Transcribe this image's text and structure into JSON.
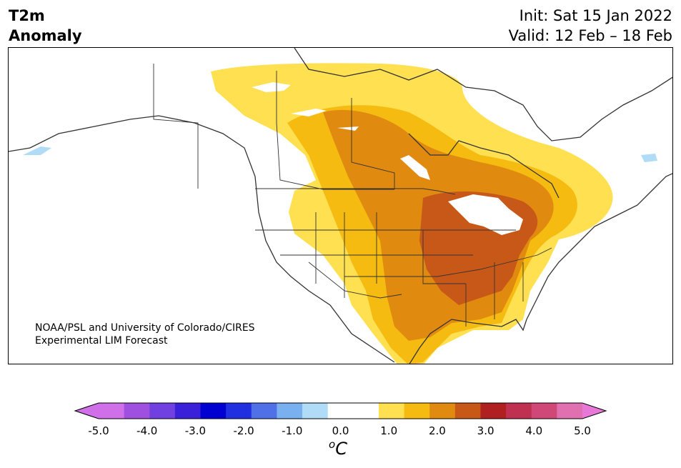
{
  "title": {
    "left_line1": "T2m",
    "left_line2": "Anomaly",
    "right_line1": "Init: Sat 15 Jan 2022",
    "right_line2": "Valid: 12 Feb – 18 Feb"
  },
  "credit": {
    "line1": "NOAA/PSL and University of Colorado/CIRES",
    "line2": "Experimental LIM Forecast"
  },
  "colorbar": {
    "ticks": [
      "-5.0",
      "-4.0",
      "-3.0",
      "-2.0",
      "-1.0",
      "0.0",
      "1.0",
      "2.0",
      "3.0",
      "4.0",
      "5.0"
    ],
    "unit_base": "C",
    "unit_sup": "o",
    "colors": [
      "#d070e8",
      "#a050e0",
      "#7040e0",
      "#3a20d8",
      "#0000d0",
      "#2030e0",
      "#5070e8",
      "#78b0f0",
      "#b0dcf8",
      "#ffffff",
      "#ffffff",
      "#ffe050",
      "#f5bb10",
      "#e08a10",
      "#c85818",
      "#b02020",
      "#c03050",
      "#d04878",
      "#e070b0"
    ],
    "over_color": "#e878d8",
    "under_color": "#d070e8"
  },
  "anomaly_colors": {
    "lvl1": "#ffe050",
    "lvl2": "#f5bb10",
    "lvl3": "#e08a10",
    "lvl4": "#c85818",
    "lake": "#ffffff",
    "cold": "#b0dcf8"
  }
}
